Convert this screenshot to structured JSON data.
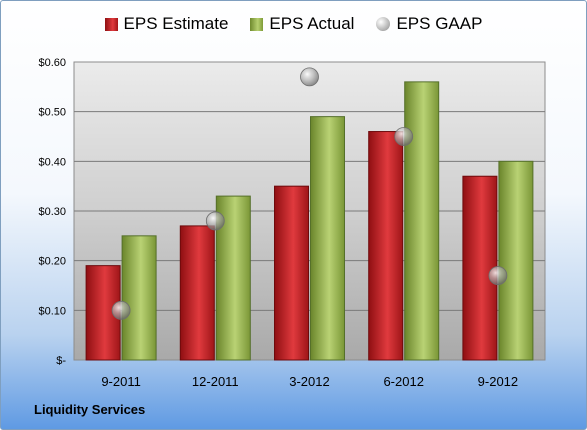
{
  "chart_data": {
    "type": "bar",
    "categories": [
      "9-2011",
      "12-2011",
      "3-2012",
      "6-2012",
      "9-2012"
    ],
    "series": [
      {
        "name": "EPS Estimate",
        "kind": "bar",
        "color": "#c82226",
        "values": [
          0.19,
          0.27,
          0.35,
          0.46,
          0.37
        ]
      },
      {
        "name": "EPS Actual",
        "kind": "bar",
        "color": "#9bbb59",
        "values": [
          0.25,
          0.33,
          0.49,
          0.56,
          0.4
        ]
      },
      {
        "name": "EPS GAAP",
        "kind": "marker",
        "color": "#a6a6a6",
        "values": [
          0.1,
          0.28,
          0.57,
          0.45,
          0.17
        ]
      }
    ],
    "ylim": [
      0,
      0.6
    ],
    "yticks": [
      0,
      0.1,
      0.2,
      0.3,
      0.4,
      0.5,
      0.6
    ],
    "ytick_labels": [
      "$-",
      "$0.10",
      "$0.20",
      "$0.30",
      "$0.40",
      "$0.50",
      "$0.60"
    ],
    "grid": true,
    "legend_position": "top"
  },
  "footer": {
    "company": "Liquidity Services"
  }
}
